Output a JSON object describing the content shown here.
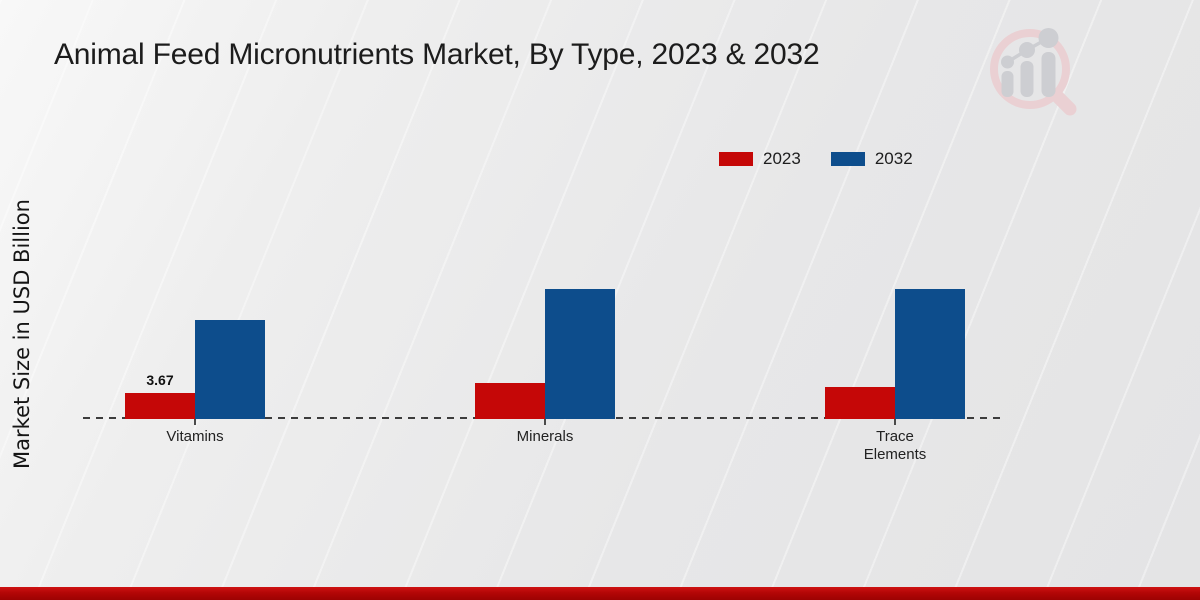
{
  "title": "Animal Feed Micronutrients Market, By Type, 2023 & 2032",
  "y_axis_label": "Market Size in USD Billion",
  "legend": {
    "items": [
      {
        "label": "2023",
        "color": "#c50707"
      },
      {
        "label": "2032",
        "color": "#0d4d8c"
      }
    ]
  },
  "chart_data": {
    "type": "bar",
    "categories": [
      "Vitamins",
      "Minerals",
      "Trace Elements"
    ],
    "series": [
      {
        "name": "2023",
        "color": "#c50707",
        "values": [
          3.67,
          5.1,
          4.5
        ]
      },
      {
        "name": "2032",
        "color": "#0d4d8c",
        "values": [
          14.0,
          18.4,
          18.4
        ]
      }
    ],
    "shown_value_labels": [
      {
        "category": "Vitamins",
        "series": "2023",
        "text": "3.67"
      }
    ],
    "title": "Animal Feed Micronutrients Market, By Type, 2023 & 2032",
    "xlabel": "",
    "ylabel": "Market Size in USD Billion",
    "ylim": [
      0,
      20
    ],
    "grid": false,
    "legend_position": "top-right",
    "baseline_style": "dashed",
    "accent_colors": {
      "red_2023": "#c50707",
      "blue_2032": "#0d4d8c",
      "footer_red": "#b30606"
    }
  }
}
